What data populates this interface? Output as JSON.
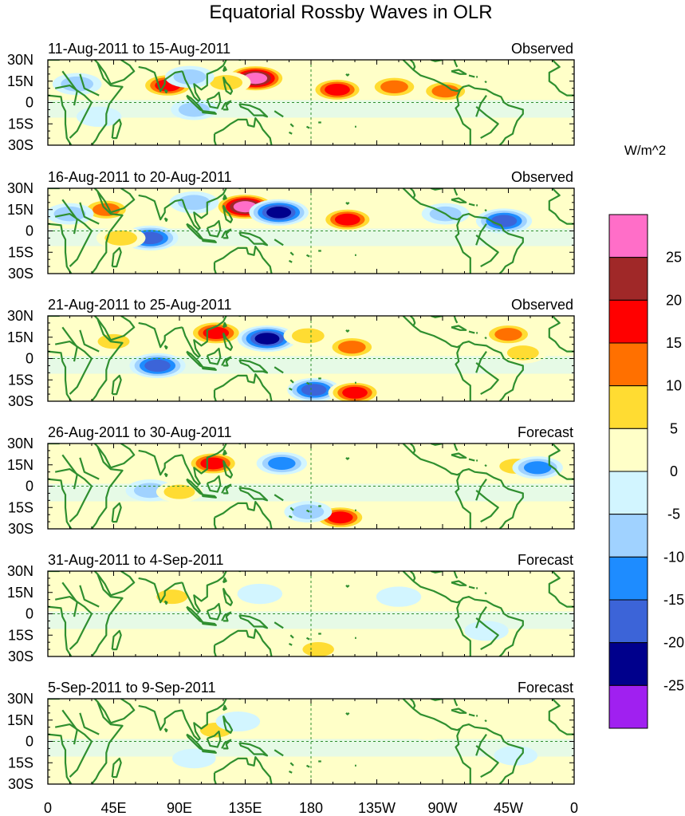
{
  "chart_data": {
    "type": "heatmap",
    "title": "Equatorial Rossby Waves in OLR",
    "variable": "OLR anomaly",
    "colorbar_units": "W/m^2",
    "colorbar_levels": [
      -25,
      -20,
      -15,
      -10,
      -5,
      0,
      5,
      10,
      15,
      20,
      25
    ],
    "colorbar_colors": [
      "#a020f0",
      "#00008c",
      "#3c64d8",
      "#1e8cff",
      "#a0d2ff",
      "#d2f5ff",
      "#ffffc8",
      "#ffdc32",
      "#ff7000",
      "#ff0000",
      "#a02828",
      "#ff6ec8"
    ],
    "x_ticks": [
      "0",
      "45E",
      "90E",
      "135E",
      "180",
      "135W",
      "90W",
      "45W",
      "0"
    ],
    "y_ticks": [
      "30N",
      "15N",
      "0",
      "15S",
      "30S"
    ],
    "lon_range": [
      0,
      360
    ],
    "lat_range": [
      -30,
      30
    ],
    "panels": [
      {
        "period": "11-Aug-2011 to 15-Aug-2011",
        "kind": "Observed",
        "anomalies": [
          {
            "lon": 142,
            "lat": 17,
            "value": 30
          },
          {
            "lon": 82,
            "lat": 12,
            "value": 20
          },
          {
            "lon": 122,
            "lat": 14,
            "value": 12
          },
          {
            "lon": 198,
            "lat": 9,
            "value": 18
          },
          {
            "lon": 237,
            "lat": 11,
            "value": 15
          },
          {
            "lon": 272,
            "lat": 8,
            "value": 14
          },
          {
            "lon": 20,
            "lat": 13,
            "value": -12
          },
          {
            "lon": 97,
            "lat": 18,
            "value": -12
          },
          {
            "lon": 100,
            "lat": -5,
            "value": -8
          },
          {
            "lon": 35,
            "lat": -10,
            "value": -6
          }
        ]
      },
      {
        "period": "16-Aug-2011 to 20-Aug-2011",
        "kind": "Observed",
        "anomalies": [
          {
            "lon": 135,
            "lat": 17,
            "value": 30
          },
          {
            "lon": 158,
            "lat": 13,
            "value": -27
          },
          {
            "lon": 70,
            "lat": -5,
            "value": -22
          },
          {
            "lon": 205,
            "lat": 8,
            "value": 18
          },
          {
            "lon": 312,
            "lat": 7,
            "value": -22
          },
          {
            "lon": 40,
            "lat": 15,
            "value": 14
          },
          {
            "lon": 100,
            "lat": 20,
            "value": -12
          },
          {
            "lon": 50,
            "lat": -5,
            "value": 12
          },
          {
            "lon": 272,
            "lat": 12,
            "value": -10
          },
          {
            "lon": 15,
            "lat": 12,
            "value": -10
          }
        ]
      },
      {
        "period": "21-Aug-2011 to 25-Aug-2011",
        "kind": "Observed",
        "anomalies": [
          {
            "lon": 115,
            "lat": 18,
            "value": 22
          },
          {
            "lon": 150,
            "lat": 14,
            "value": -27
          },
          {
            "lon": 75,
            "lat": -5,
            "value": -22
          },
          {
            "lon": 178,
            "lat": 16,
            "value": 12
          },
          {
            "lon": 208,
            "lat": 8,
            "value": 15
          },
          {
            "lon": 182,
            "lat": -22,
            "value": -18
          },
          {
            "lon": 210,
            "lat": -24,
            "value": 18
          },
          {
            "lon": 315,
            "lat": 17,
            "value": 14
          },
          {
            "lon": 325,
            "lat": 4,
            "value": 10
          },
          {
            "lon": 45,
            "lat": 12,
            "value": 10
          }
        ]
      },
      {
        "period": "26-Aug-2011 to 30-Aug-2011",
        "kind": "Forecast",
        "anomalies": [
          {
            "lon": 113,
            "lat": 16,
            "value": 18
          },
          {
            "lon": 160,
            "lat": 16,
            "value": -14
          },
          {
            "lon": 200,
            "lat": -22,
            "value": 18
          },
          {
            "lon": 178,
            "lat": -18,
            "value": -10
          },
          {
            "lon": 70,
            "lat": -3,
            "value": -12
          },
          {
            "lon": 320,
            "lat": 14,
            "value": 12
          },
          {
            "lon": 335,
            "lat": 13,
            "value": -14
          },
          {
            "lon": 90,
            "lat": -4,
            "value": 8
          },
          {
            "lon": 30,
            "lat": 12,
            "value": 6
          }
        ]
      },
      {
        "period": "31-Aug-2011 to 4-Sep-2011",
        "kind": "Forecast",
        "anomalies": [
          {
            "lon": 85,
            "lat": 12,
            "value": 8
          },
          {
            "lon": 185,
            "lat": -25,
            "value": 9
          },
          {
            "lon": 145,
            "lat": 14,
            "value": -6
          },
          {
            "lon": 240,
            "lat": 12,
            "value": -6
          },
          {
            "lon": 300,
            "lat": -12,
            "value": -5
          },
          {
            "lon": 20,
            "lat": 10,
            "value": 5
          },
          {
            "lon": 330,
            "lat": 10,
            "value": 5
          }
        ]
      },
      {
        "period": "5-Sep-2011 to 9-Sep-2011",
        "kind": "Forecast",
        "anomalies": [
          {
            "lon": 115,
            "lat": 8,
            "value": 10
          },
          {
            "lon": 130,
            "lat": 14,
            "value": -5
          },
          {
            "lon": 100,
            "lat": -12,
            "value": -4
          },
          {
            "lon": 260,
            "lat": 8,
            "value": 5
          },
          {
            "lon": 60,
            "lat": 12,
            "value": 4
          },
          {
            "lon": 320,
            "lat": -10,
            "value": -4
          }
        ]
      }
    ]
  }
}
